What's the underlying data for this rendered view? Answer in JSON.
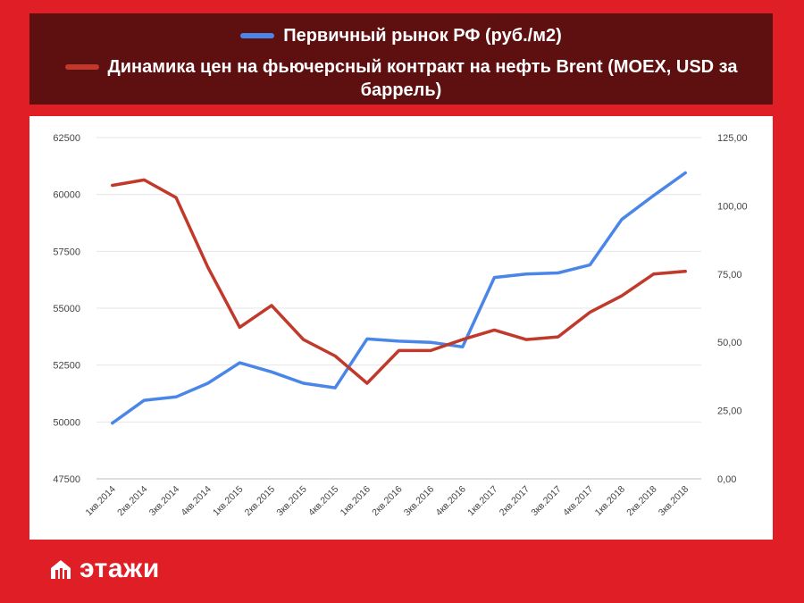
{
  "legend": {
    "series1_label": "Первичный рынок РФ (руб./м2)",
    "series2_label_line1": "Динамика цен на фьючерсный контракт на нефть Brent (MOEX, USD за",
    "series2_label_line2": "баррель)"
  },
  "logo": {
    "text": "этажи",
    "icon": "house-icon"
  },
  "colors": {
    "background": "#e01e26",
    "legend_bg": "#5e0f10",
    "series1": "#4a86e8",
    "series2": "#c0392b"
  },
  "chart_data": {
    "type": "line",
    "categories": [
      "1кв.2014",
      "2кв.2014",
      "3кв.2014",
      "4кв.2014",
      "1кв.2015",
      "2кв.2015",
      "3кв.2015",
      "4кв.2015",
      "1кв.2016",
      "2кв.2016",
      "3кв.2016",
      "4кв.2016",
      "1кв.2017",
      "2кв.2017",
      "3кв.2017",
      "4кв.2017",
      "1кв.2018",
      "2кв.2018",
      "3кв.2018"
    ],
    "series": [
      {
        "name": "Первичный рынок РФ (руб./м2)",
        "axis": "left",
        "values": [
          49950,
          50950,
          51100,
          51700,
          52600,
          52200,
          51700,
          51500,
          53650,
          53550,
          53500,
          53300,
          56350,
          56500,
          56550,
          56900,
          58900,
          59950,
          60950
        ]
      },
      {
        "name": "Динамика цен на фьючерсный контракт на нефть Brent (MOEX, USD за баррель)",
        "axis": "right",
        "values": [
          107.5,
          109.5,
          103,
          77.5,
          55.5,
          63.5,
          51,
          45,
          35,
          47,
          47,
          51,
          54.5,
          51,
          52,
          61,
          67,
          75,
          76
        ]
      }
    ],
    "left_axis": {
      "min": 47500,
      "max": 62500,
      "ticks": [
        "62500",
        "60000",
        "57500",
        "55000",
        "52500",
        "50000",
        "47500"
      ]
    },
    "right_axis": {
      "min": 0,
      "max": 125,
      "ticks": [
        "125,00",
        "100,00",
        "75,00",
        "50,00",
        "25,00",
        "0,00"
      ]
    },
    "grid": true
  }
}
